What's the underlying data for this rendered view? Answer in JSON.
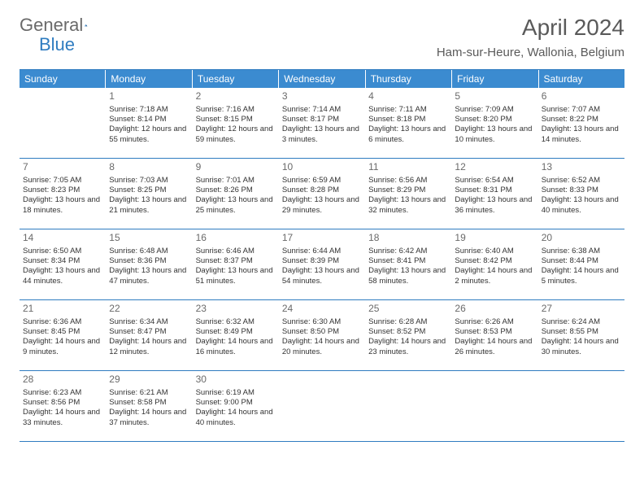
{
  "brand": {
    "part1": "General",
    "part2": "Blue"
  },
  "title": "April 2024",
  "location": "Ham-sur-Heure, Wallonia, Belgium",
  "colors": {
    "accent": "#3b8bd0",
    "border": "#2f7cc0",
    "text": "#333333",
    "muted": "#6a6a6a",
    "bg": "#ffffff"
  },
  "dayHeaders": [
    "Sunday",
    "Monday",
    "Tuesday",
    "Wednesday",
    "Thursday",
    "Friday",
    "Saturday"
  ],
  "weeks": [
    [
      {
        "n": "",
        "sr": "",
        "ss": "",
        "dl": ""
      },
      {
        "n": "1",
        "sr": "Sunrise: 7:18 AM",
        "ss": "Sunset: 8:14 PM",
        "dl": "Daylight: 12 hours and 55 minutes."
      },
      {
        "n": "2",
        "sr": "Sunrise: 7:16 AM",
        "ss": "Sunset: 8:15 PM",
        "dl": "Daylight: 12 hours and 59 minutes."
      },
      {
        "n": "3",
        "sr": "Sunrise: 7:14 AM",
        "ss": "Sunset: 8:17 PM",
        "dl": "Daylight: 13 hours and 3 minutes."
      },
      {
        "n": "4",
        "sr": "Sunrise: 7:11 AM",
        "ss": "Sunset: 8:18 PM",
        "dl": "Daylight: 13 hours and 6 minutes."
      },
      {
        "n": "5",
        "sr": "Sunrise: 7:09 AM",
        "ss": "Sunset: 8:20 PM",
        "dl": "Daylight: 13 hours and 10 minutes."
      },
      {
        "n": "6",
        "sr": "Sunrise: 7:07 AM",
        "ss": "Sunset: 8:22 PM",
        "dl": "Daylight: 13 hours and 14 minutes."
      }
    ],
    [
      {
        "n": "7",
        "sr": "Sunrise: 7:05 AM",
        "ss": "Sunset: 8:23 PM",
        "dl": "Daylight: 13 hours and 18 minutes."
      },
      {
        "n": "8",
        "sr": "Sunrise: 7:03 AM",
        "ss": "Sunset: 8:25 PM",
        "dl": "Daylight: 13 hours and 21 minutes."
      },
      {
        "n": "9",
        "sr": "Sunrise: 7:01 AM",
        "ss": "Sunset: 8:26 PM",
        "dl": "Daylight: 13 hours and 25 minutes."
      },
      {
        "n": "10",
        "sr": "Sunrise: 6:59 AM",
        "ss": "Sunset: 8:28 PM",
        "dl": "Daylight: 13 hours and 29 minutes."
      },
      {
        "n": "11",
        "sr": "Sunrise: 6:56 AM",
        "ss": "Sunset: 8:29 PM",
        "dl": "Daylight: 13 hours and 32 minutes."
      },
      {
        "n": "12",
        "sr": "Sunrise: 6:54 AM",
        "ss": "Sunset: 8:31 PM",
        "dl": "Daylight: 13 hours and 36 minutes."
      },
      {
        "n": "13",
        "sr": "Sunrise: 6:52 AM",
        "ss": "Sunset: 8:33 PM",
        "dl": "Daylight: 13 hours and 40 minutes."
      }
    ],
    [
      {
        "n": "14",
        "sr": "Sunrise: 6:50 AM",
        "ss": "Sunset: 8:34 PM",
        "dl": "Daylight: 13 hours and 44 minutes."
      },
      {
        "n": "15",
        "sr": "Sunrise: 6:48 AM",
        "ss": "Sunset: 8:36 PM",
        "dl": "Daylight: 13 hours and 47 minutes."
      },
      {
        "n": "16",
        "sr": "Sunrise: 6:46 AM",
        "ss": "Sunset: 8:37 PM",
        "dl": "Daylight: 13 hours and 51 minutes."
      },
      {
        "n": "17",
        "sr": "Sunrise: 6:44 AM",
        "ss": "Sunset: 8:39 PM",
        "dl": "Daylight: 13 hours and 54 minutes."
      },
      {
        "n": "18",
        "sr": "Sunrise: 6:42 AM",
        "ss": "Sunset: 8:41 PM",
        "dl": "Daylight: 13 hours and 58 minutes."
      },
      {
        "n": "19",
        "sr": "Sunrise: 6:40 AM",
        "ss": "Sunset: 8:42 PM",
        "dl": "Daylight: 14 hours and 2 minutes."
      },
      {
        "n": "20",
        "sr": "Sunrise: 6:38 AM",
        "ss": "Sunset: 8:44 PM",
        "dl": "Daylight: 14 hours and 5 minutes."
      }
    ],
    [
      {
        "n": "21",
        "sr": "Sunrise: 6:36 AM",
        "ss": "Sunset: 8:45 PM",
        "dl": "Daylight: 14 hours and 9 minutes."
      },
      {
        "n": "22",
        "sr": "Sunrise: 6:34 AM",
        "ss": "Sunset: 8:47 PM",
        "dl": "Daylight: 14 hours and 12 minutes."
      },
      {
        "n": "23",
        "sr": "Sunrise: 6:32 AM",
        "ss": "Sunset: 8:49 PM",
        "dl": "Daylight: 14 hours and 16 minutes."
      },
      {
        "n": "24",
        "sr": "Sunrise: 6:30 AM",
        "ss": "Sunset: 8:50 PM",
        "dl": "Daylight: 14 hours and 20 minutes."
      },
      {
        "n": "25",
        "sr": "Sunrise: 6:28 AM",
        "ss": "Sunset: 8:52 PM",
        "dl": "Daylight: 14 hours and 23 minutes."
      },
      {
        "n": "26",
        "sr": "Sunrise: 6:26 AM",
        "ss": "Sunset: 8:53 PM",
        "dl": "Daylight: 14 hours and 26 minutes."
      },
      {
        "n": "27",
        "sr": "Sunrise: 6:24 AM",
        "ss": "Sunset: 8:55 PM",
        "dl": "Daylight: 14 hours and 30 minutes."
      }
    ],
    [
      {
        "n": "28",
        "sr": "Sunrise: 6:23 AM",
        "ss": "Sunset: 8:56 PM",
        "dl": "Daylight: 14 hours and 33 minutes."
      },
      {
        "n": "29",
        "sr": "Sunrise: 6:21 AM",
        "ss": "Sunset: 8:58 PM",
        "dl": "Daylight: 14 hours and 37 minutes."
      },
      {
        "n": "30",
        "sr": "Sunrise: 6:19 AM",
        "ss": "Sunset: 9:00 PM",
        "dl": "Daylight: 14 hours and 40 minutes."
      },
      {
        "n": "",
        "sr": "",
        "ss": "",
        "dl": ""
      },
      {
        "n": "",
        "sr": "",
        "ss": "",
        "dl": ""
      },
      {
        "n": "",
        "sr": "",
        "ss": "",
        "dl": ""
      },
      {
        "n": "",
        "sr": "",
        "ss": "",
        "dl": ""
      }
    ]
  ]
}
